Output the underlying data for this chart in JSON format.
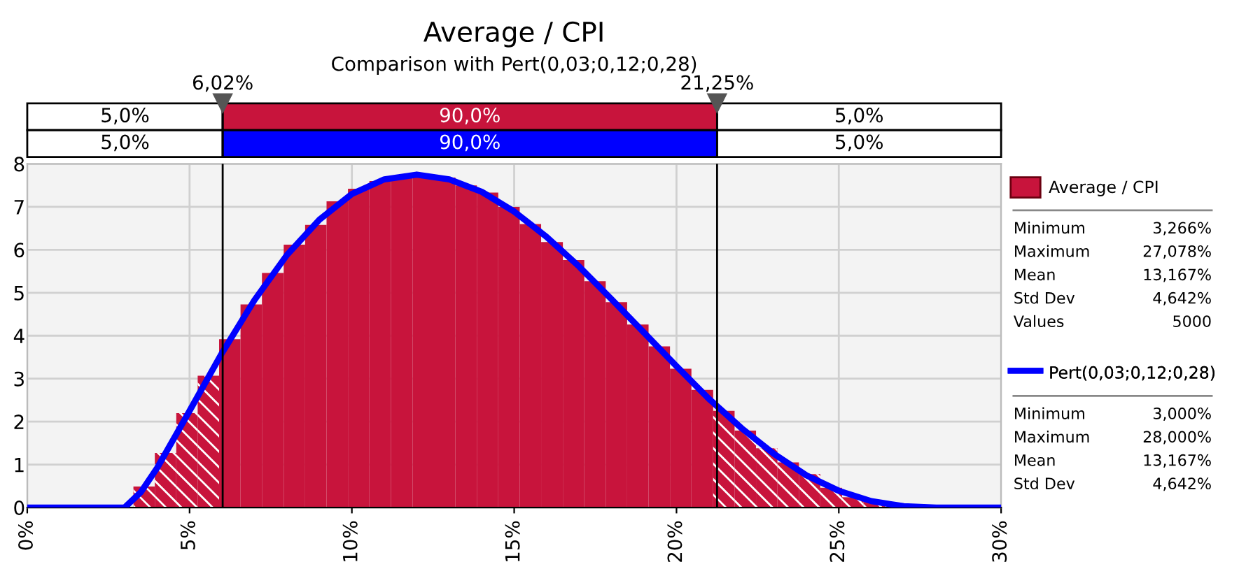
{
  "chart_data": {
    "type": "histogram",
    "title": "Average / CPI",
    "subtitle": "Comparison with Pert(0,03;0,12;0,28)",
    "series": [
      {
        "name": "Average / CPI",
        "type": "histogram",
        "color": "#c8143c",
        "bins": [
          3.27,
          3.93,
          4.59,
          5.25,
          5.91,
          6.57,
          7.23,
          7.9,
          8.56,
          9.22,
          9.88,
          10.54,
          11.2,
          11.87,
          12.53,
          13.19,
          13.85,
          14.51,
          15.17,
          15.83,
          16.5,
          17.16,
          17.82,
          18.48,
          19.14,
          19.8,
          20.46,
          21.13,
          21.79,
          22.45,
          23.11,
          23.77,
          24.43,
          25.1,
          25.76,
          26.42,
          27.08
        ],
        "values": [
          0.49,
          1.27,
          2.2,
          3.07,
          3.92,
          4.73,
          5.46,
          6.12,
          6.58,
          7.13,
          7.42,
          7.6,
          7.72,
          7.75,
          7.68,
          7.5,
          7.33,
          7.0,
          6.6,
          6.18,
          5.76,
          5.27,
          4.78,
          4.26,
          3.75,
          3.23,
          2.74,
          2.25,
          1.79,
          1.38,
          1.05,
          0.78,
          0.46,
          0.24,
          0.13,
          null
        ]
      },
      {
        "name": "Pert(0,03;0,12;0,28)",
        "type": "line",
        "color": "#0000ff",
        "x": [
          0,
          3,
          3.5,
          4,
          5,
          6,
          7,
          8,
          9,
          10,
          11,
          12,
          13,
          14,
          15,
          16,
          17,
          18,
          19,
          20,
          21,
          22,
          23,
          24,
          25,
          26,
          27,
          28,
          30
        ],
        "values": [
          0,
          0,
          0.36,
          0.92,
          2.25,
          3.6,
          4.83,
          5.88,
          6.7,
          7.3,
          7.64,
          7.75,
          7.64,
          7.35,
          6.89,
          6.3,
          5.61,
          4.85,
          4.07,
          3.29,
          2.53,
          1.85,
          1.25,
          0.75,
          0.39,
          0.15,
          0.03,
          0,
          0
        ]
      }
    ],
    "xlim": [
      0,
      30
    ],
    "xticks": [
      {
        "value": 0,
        "label": "0%"
      },
      {
        "value": 5,
        "label": "5%"
      },
      {
        "value": 10,
        "label": "10%"
      },
      {
        "value": 15,
        "label": "15%"
      },
      {
        "value": 20,
        "label": "20%"
      },
      {
        "value": 25,
        "label": "25%"
      },
      {
        "value": 30,
        "label": "30%"
      }
    ],
    "ylim": [
      0,
      8
    ],
    "yticks": [
      0,
      1,
      2,
      3,
      4,
      5,
      6,
      7,
      8
    ],
    "grid": true,
    "legend": "right",
    "ref_lines": [
      {
        "axis": "x",
        "value": 6.02,
        "label": "6,02%"
      },
      {
        "axis": "x",
        "value": 21.25,
        "label": "21,25%"
      }
    ],
    "annotations": [
      "5,0%",
      "90,0%",
      "5,0%",
      "5,0%",
      "90,0%",
      "5,0%",
      "Minimum",
      "3,266%",
      "Maximum",
      "27,078%",
      "Mean",
      "13,167%",
      "Std Dev",
      "4,642%",
      "Values",
      "5000",
      "Minimum",
      "3,000%",
      "Maximum",
      "28,000%",
      "Mean",
      "13,167%",
      "Std Dev",
      "4,642%"
    ]
  }
}
